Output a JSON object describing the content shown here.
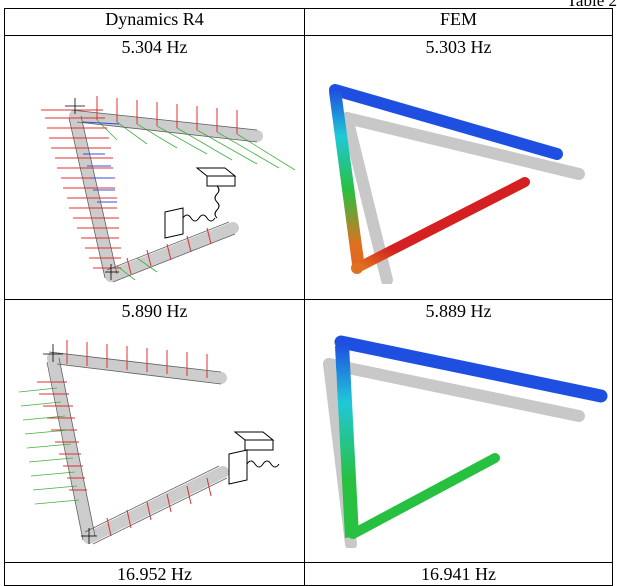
{
  "caption": "Table 2",
  "columns": [
    "Dynamics R4",
    "FEM"
  ],
  "rows": [
    {
      "r4": "5.304 Hz",
      "fem": "5.303 Hz"
    },
    {
      "r4": "5.890 Hz",
      "fem": "5.889 Hz"
    },
    {
      "r4": "16.952 Hz",
      "fem": "16.941 Hz"
    }
  ],
  "icons": {
    "r4_figure": "wireframe-mode-shape",
    "fem_figure": "fem-contour-mode-shape"
  },
  "colors": {
    "fem_blue": "#1f4fe0",
    "fem_cyan": "#20c8d8",
    "fem_green": "#28c040",
    "fem_orange": "#e07020",
    "fem_red": "#d42020",
    "ghost": "#c8c8c8",
    "r4_red": "#e03030",
    "r4_green": "#40b040",
    "r4_blue": "#3050e0"
  }
}
